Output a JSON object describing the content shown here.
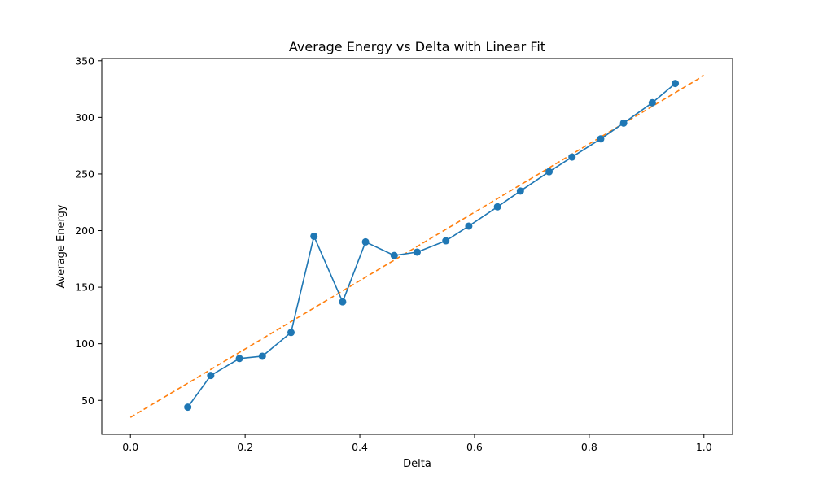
{
  "chart_data": {
    "type": "line",
    "title": "Average Energy vs Delta with Linear Fit",
    "xlabel": "Delta",
    "ylabel": "Average Energy",
    "xlim": [
      -0.05,
      1.05
    ],
    "ylim": [
      20,
      352
    ],
    "x_ticks": [
      0.0,
      0.2,
      0.4,
      0.6,
      0.8,
      1.0
    ],
    "x_tick_labels": [
      "0.0",
      "0.2",
      "0.4",
      "0.6",
      "0.8",
      "1.0"
    ],
    "y_ticks": [
      50,
      100,
      150,
      200,
      250,
      300,
      350
    ],
    "y_tick_labels": [
      "50",
      "100",
      "150",
      "200",
      "250",
      "300",
      "350"
    ],
    "grid": false,
    "legend": false,
    "series": [
      {
        "style": "line-marker",
        "color": "#1f77b4",
        "x": [
          0.1,
          0.14,
          0.19,
          0.23,
          0.28,
          0.32,
          0.37,
          0.41,
          0.46,
          0.5,
          0.55,
          0.59,
          0.64,
          0.68,
          0.73,
          0.77,
          0.82,
          0.86,
          0.91,
          0.95
        ],
        "y": [
          44,
          72,
          87,
          89,
          110,
          195,
          137,
          190,
          178,
          181,
          191,
          204,
          221,
          235,
          252,
          265,
          281,
          295,
          313,
          330
        ]
      },
      {
        "style": "dashed",
        "color": "#ff7f0e",
        "x": [
          0.0,
          1.0
        ],
        "y": [
          35,
          337
        ]
      }
    ]
  }
}
